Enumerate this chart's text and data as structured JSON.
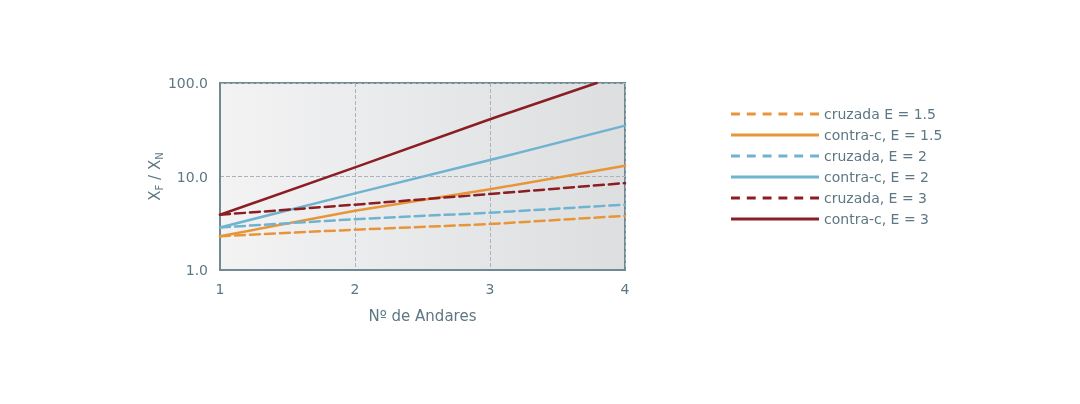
{
  "chart_data": {
    "type": "line",
    "xlabel": "Nº de Andares",
    "ylabel": "X$_{F}$ / X$_{N}$",
    "x": [
      1,
      2,
      3,
      4
    ],
    "xlim": [
      1,
      4
    ],
    "xticks": [
      1,
      2,
      3,
      4
    ],
    "ylim": [
      1,
      100
    ],
    "yticks": [
      {
        "value": 1,
        "label": "1.0"
      },
      {
        "value": 10,
        "label": "10.0"
      },
      {
        "value": 100,
        "label": "100.0"
      }
    ],
    "log": "y",
    "grid": true,
    "legend": "right",
    "marker": "none",
    "series": [
      {
        "name": "cruzada E = 1.5",
        "color": "#e8953a",
        "line_style": "dashed",
        "values": [
          2.3,
          2.7,
          3.1,
          3.8
        ]
      },
      {
        "name": "contra-c, E = 1.5",
        "color": "#e8953a",
        "line_style": "solid",
        "values": [
          2.3,
          4.3,
          7.3,
          13
        ]
      },
      {
        "name": "cruzada, E = 2",
        "color": "#6fb3cf",
        "line_style": "dashed",
        "values": [
          2.85,
          3.5,
          4.1,
          5.0
        ]
      },
      {
        "name": "contra-c, E = 2",
        "color": "#6fb3cf",
        "line_style": "solid",
        "values": [
          2.85,
          6.6,
          15,
          35
        ]
      },
      {
        "name": "cruzada, E = 3",
        "color": "#8b1e22",
        "line_style": "dashed",
        "values": [
          3.9,
          5.0,
          6.5,
          8.5
        ]
      },
      {
        "name": "contra-c, E = 3",
        "color": "#8b1e22",
        "line_style": "solid",
        "x": [
          1,
          2,
          3,
          3.79
        ],
        "values": [
          3.9,
          12.5,
          41,
          100
        ]
      }
    ]
  }
}
